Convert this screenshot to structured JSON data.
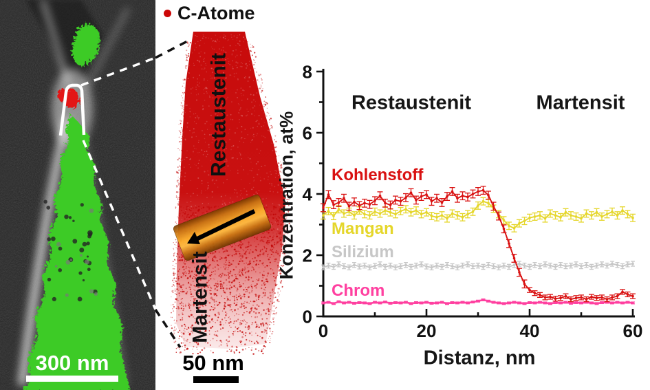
{
  "legend": {
    "label": "C-Atome",
    "dot_color": "#cc0707"
  },
  "left_panel": {
    "scale_bar_label": "300 nm",
    "colors": {
      "background": "#262626",
      "phase_green": "#3ecb26",
      "carbon_red": "#e31212",
      "roi_outline": "#ffffff"
    }
  },
  "middle_panel": {
    "label_austenite": "Restaustenit",
    "label_martensite": "Martensit",
    "scale_bar_label": "50 nm",
    "colors": {
      "atom_red": "#c60404",
      "roi_orange": "#e8901e",
      "arrow": "#000000"
    }
  },
  "chart_data": {
    "type": "line",
    "title": "",
    "xlabel": "Distanz, nm",
    "ylabel": "Konzentration, at%",
    "xlim": [
      0,
      60
    ],
    "ylim": [
      0,
      8
    ],
    "x_major_ticks": [
      0,
      20,
      40,
      60
    ],
    "x_minor_ticks": [
      10,
      30,
      50
    ],
    "y_major_ticks": [
      0,
      2,
      4,
      6,
      8
    ],
    "y_minor_ticks": [
      1,
      3,
      5,
      7
    ],
    "grid": false,
    "legend_position": "inline-left",
    "region_labels": {
      "left": "Restaustenit",
      "right": "Martensit"
    },
    "x_step": 1,
    "series": [
      {
        "name": "Kohlenstoff",
        "color": "#d91111",
        "err": 0.13,
        "values": [
          3.55,
          3.98,
          3.65,
          3.72,
          3.86,
          3.6,
          3.74,
          3.62,
          3.7,
          3.66,
          3.78,
          3.94,
          3.7,
          3.64,
          3.8,
          3.76,
          3.88,
          4.04,
          3.8,
          3.92,
          3.98,
          3.76,
          3.86,
          3.72,
          3.92,
          4.08,
          3.86,
          3.94,
          3.9,
          4.0,
          4.08,
          4.12,
          3.96,
          3.6,
          3.28,
          2.86,
          2.38,
          1.9,
          1.44,
          1.06,
          0.86,
          0.76,
          0.7,
          0.62,
          0.64,
          0.58,
          0.6,
          0.66,
          0.56,
          0.6,
          0.62,
          0.56,
          0.64,
          0.6,
          0.62,
          0.56,
          0.62,
          0.66,
          0.8,
          0.72,
          0.66
        ]
      },
      {
        "name": "Mangan",
        "color": "#e5d62a",
        "err": 0.12,
        "values": [
          3.3,
          3.44,
          3.28,
          3.5,
          3.36,
          3.42,
          3.3,
          3.46,
          3.34,
          3.3,
          3.42,
          3.36,
          3.46,
          3.4,
          3.34,
          3.44,
          3.5,
          3.4,
          3.46,
          3.34,
          3.4,
          3.28,
          3.24,
          3.3,
          3.2,
          3.36,
          3.3,
          3.24,
          3.34,
          3.42,
          3.62,
          3.76,
          3.7,
          3.52,
          3.34,
          3.14,
          2.96,
          2.88,
          3.04,
          3.12,
          3.22,
          3.26,
          3.3,
          3.2,
          3.36,
          3.3,
          3.24,
          3.4,
          3.3,
          3.26,
          3.2,
          3.36,
          3.3,
          3.4,
          3.26,
          3.34,
          3.42,
          3.3,
          3.46,
          3.34,
          3.22
        ]
      },
      {
        "name": "Silizium",
        "color": "#c7c7c7",
        "err": 0.08,
        "values": [
          1.6,
          1.66,
          1.62,
          1.7,
          1.64,
          1.6,
          1.68,
          1.63,
          1.66,
          1.6,
          1.65,
          1.7,
          1.62,
          1.66,
          1.6,
          1.64,
          1.68,
          1.62,
          1.66,
          1.7,
          1.63,
          1.6,
          1.66,
          1.62,
          1.68,
          1.64,
          1.6,
          1.66,
          1.7,
          1.64,
          1.66,
          1.62,
          1.68,
          1.64,
          1.6,
          1.66,
          1.62,
          1.68,
          1.72,
          1.66,
          1.62,
          1.68,
          1.64,
          1.7,
          1.66,
          1.62,
          1.68,
          1.64,
          1.66,
          1.7,
          1.64,
          1.68,
          1.62,
          1.66,
          1.7,
          1.66,
          1.72,
          1.68,
          1.64,
          1.7,
          1.72
        ]
      },
      {
        "name": "Chrom",
        "color": "#ff40a0",
        "err": 0.05,
        "values": [
          0.44,
          0.46,
          0.42,
          0.48,
          0.44,
          0.46,
          0.43,
          0.45,
          0.44,
          0.42,
          0.46,
          0.44,
          0.47,
          0.43,
          0.45,
          0.44,
          0.46,
          0.42,
          0.45,
          0.44,
          0.46,
          0.43,
          0.44,
          0.46,
          0.42,
          0.45,
          0.44,
          0.46,
          0.44,
          0.47,
          0.5,
          0.54,
          0.5,
          0.46,
          0.44,
          0.42,
          0.44,
          0.46,
          0.44,
          0.42,
          0.45,
          0.44,
          0.46,
          0.44,
          0.42,
          0.45,
          0.44,
          0.46,
          0.43,
          0.45,
          0.44,
          0.46,
          0.44,
          0.42,
          0.45,
          0.46,
          0.44,
          0.46,
          0.44,
          0.46,
          0.44
        ]
      }
    ]
  }
}
